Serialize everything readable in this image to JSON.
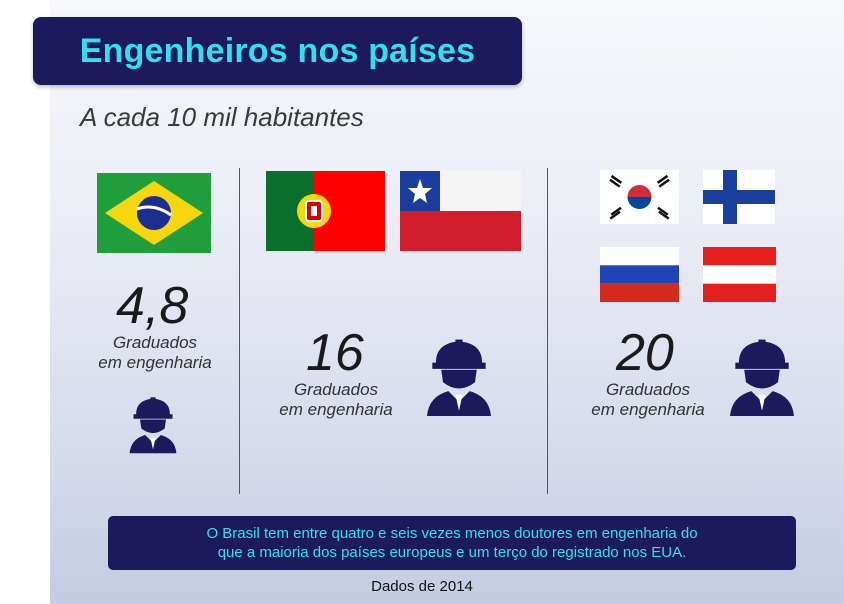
{
  "title": "Engenheiros nos países",
  "subtitle": "A cada 10 mil habitantes",
  "groups": [
    {
      "value": "4,8",
      "caption_line1": "Graduados",
      "caption_line2": "em engenharia",
      "flags": [
        "brazil-flag"
      ]
    },
    {
      "value": "16",
      "caption_line1": "Graduados",
      "caption_line2": "em engenharia",
      "flags": [
        "portugal-flag",
        "chile-flag"
      ]
    },
    {
      "value": "20",
      "caption_line1": "Graduados",
      "caption_line2": "em engenharia",
      "flags": [
        "south-korea-flag",
        "finland-flag",
        "russia-flag",
        "austria-flag"
      ]
    }
  ],
  "note": {
    "line1": "O Brasil tem entre quatro e seis vezes menos doutores em engenharia do",
    "line2": "que a maioria dos países europeus e um terço do registrado nos EUA."
  },
  "source": "Dados de 2014",
  "colors": {
    "navy": "#1d1a5c",
    "accent": "#2ee0f0"
  },
  "icons": [
    "engineer-worker-icon"
  ]
}
